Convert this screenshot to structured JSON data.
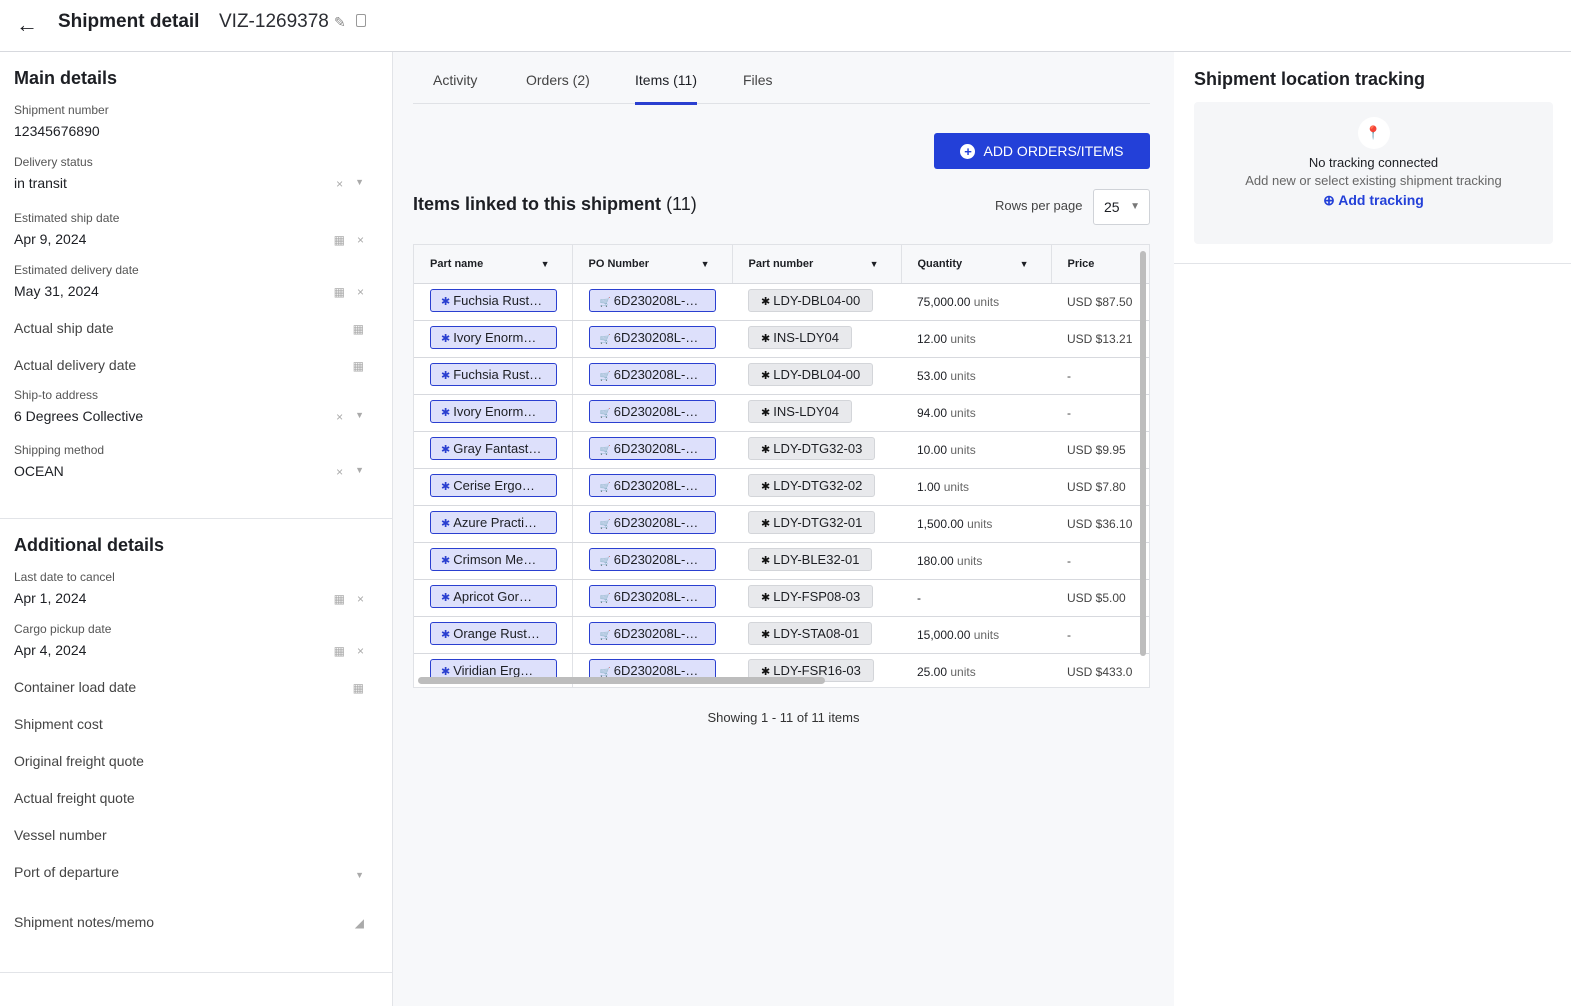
{
  "header": {
    "title": "Shipment detail",
    "shipment_id": "VIZ-1269378"
  },
  "main_details": {
    "title": "Main details",
    "fields": [
      {
        "label": "Shipment number",
        "value": "12345676890",
        "icons": []
      },
      {
        "label": "Delivery status",
        "value": "in transit",
        "icons": [
          "clear",
          "dropdown"
        ]
      },
      {
        "label": "Estimated ship date",
        "value": "Apr 9, 2024",
        "icons": [
          "calendar",
          "clear"
        ]
      },
      {
        "label": "Estimated delivery date",
        "value": "May 31, 2024",
        "icons": [
          "calendar",
          "clear"
        ]
      },
      {
        "label": "Actual ship date",
        "value": null,
        "icons": [
          "calendar"
        ]
      },
      {
        "label": "Actual delivery date",
        "value": null,
        "icons": [
          "calendar"
        ]
      },
      {
        "label": "Ship-to address",
        "value": "6 Degrees Collective",
        "icons": [
          "clear",
          "dropdown"
        ]
      },
      {
        "label": "Shipping method",
        "value": "OCEAN",
        "icons": [
          "clear",
          "dropdown"
        ]
      }
    ]
  },
  "additional_details": {
    "title": "Additional details",
    "fields": [
      {
        "label": "Last date to cancel",
        "value": "Apr 1, 2024",
        "icons": [
          "calendar",
          "clear"
        ]
      },
      {
        "label": "Cargo pickup date",
        "value": "Apr 4, 2024",
        "icons": [
          "calendar",
          "clear"
        ]
      },
      {
        "label": "Container load date",
        "value": null,
        "icons": [
          "calendar"
        ]
      },
      {
        "label": "Shipment cost",
        "value": null,
        "icons": []
      },
      {
        "label": "Original freight quote",
        "value": null,
        "icons": []
      },
      {
        "label": "Actual freight quote",
        "value": null,
        "icons": []
      },
      {
        "label": "Vessel number",
        "value": null,
        "icons": []
      },
      {
        "label": "Port of departure",
        "value": null,
        "icons": [
          "dropdown"
        ]
      },
      {
        "label": "Shipment notes/memo",
        "value": null,
        "icons": [
          "resize"
        ]
      }
    ]
  },
  "tabs": [
    {
      "label": "Activity"
    },
    {
      "label": "Orders (2)"
    },
    {
      "label": "Items (11)",
      "active": true
    },
    {
      "label": "Files"
    }
  ],
  "add_button": "ADD ORDERS/ITEMS",
  "items": {
    "title": "Items linked to this shipment",
    "count": "(11)",
    "rows_per_page_label": "Rows per page",
    "rows_per_page": "25",
    "columns": [
      "Part name",
      "PO Number",
      "Part number",
      "Quantity",
      "Price"
    ],
    "unit": "units",
    "rows": [
      [
        "Fuchsia Rust…",
        "6D230208L-…",
        "LDY-DBL04-00",
        "75,000.00",
        "USD $87.50"
      ],
      [
        "Ivory Enorm…",
        "6D230208L-…",
        "INS-LDY04",
        "12.00",
        "USD $13.21"
      ],
      [
        "Fuchsia Rust…",
        "6D230208L-…",
        "LDY-DBL04-00",
        "53.00",
        "-"
      ],
      [
        "Ivory Enorm…",
        "6D230208L-…",
        "INS-LDY04",
        "94.00",
        "-"
      ],
      [
        "Gray Fantast…",
        "6D230208L-…",
        "LDY-DTG32-03",
        "10.00",
        "USD $9.95"
      ],
      [
        "Cerise Ergo…",
        "6D230208L-…",
        "LDY-DTG32-02",
        "1.00",
        "USD $7.80"
      ],
      [
        "Azure Practi…",
        "6D230208L-…",
        "LDY-DTG32-01",
        "1,500.00",
        "USD $36.10"
      ],
      [
        "Crimson Me…",
        "6D230208L-…",
        "LDY-BLE32-01",
        "180.00",
        "-"
      ],
      [
        "Apricot Gor…",
        "6D230208L-…",
        "LDY-FSP08-03",
        "-",
        "USD $5.00"
      ],
      [
        "Orange Rust…",
        "6D230208L-…",
        "LDY-STA08-01",
        "15,000.00",
        "-"
      ],
      [
        "Viridian Erg…",
        "6D230208L-…",
        "LDY-FSR16-03",
        "25.00",
        "USD $433.0"
      ]
    ],
    "showing": "Showing 1 - 11 of 11 items"
  },
  "tracking": {
    "title": "Shipment location tracking",
    "none": "No tracking connected",
    "hint": "Add new or select existing shipment tracking",
    "add": "Add tracking"
  },
  "colors": {
    "accent": "#2340d8",
    "chip_blue": "#dde0fb"
  }
}
